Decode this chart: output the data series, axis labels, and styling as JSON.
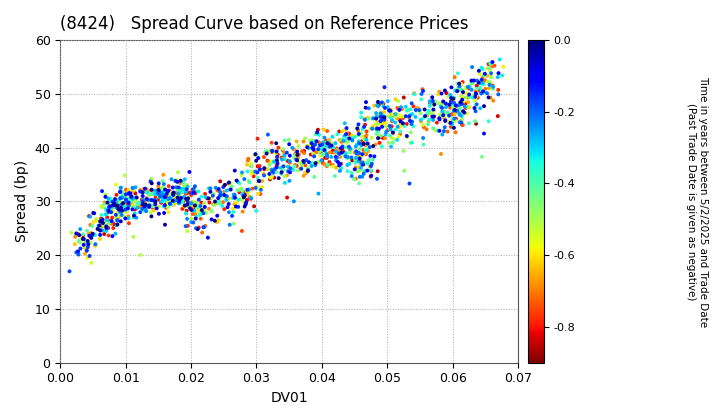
{
  "title": "(8424)   Spread Curve based on Reference Prices",
  "xlabel": "DV01",
  "ylabel": "Spread (bp)",
  "xlim": [
    0.0,
    0.07
  ],
  "ylim": [
    0,
    60
  ],
  "xticks": [
    0.0,
    0.01,
    0.02,
    0.03,
    0.04,
    0.05,
    0.06,
    0.07
  ],
  "yticks": [
    0,
    10,
    20,
    30,
    40,
    50,
    60
  ],
  "colorbar_label": "Time in years between 5/2/2025 and Trade Date\n(Past Trade Date is given as negative)",
  "colorbar_ticks": [
    0.0,
    -0.2,
    -0.4,
    -0.6,
    -0.8
  ],
  "cmap": "jet_r",
  "vmin": -0.9,
  "vmax": 0.0,
  "marker_size": 8,
  "background_color": "#ffffff",
  "grid_color": "#aaaaaa",
  "seed": 42
}
